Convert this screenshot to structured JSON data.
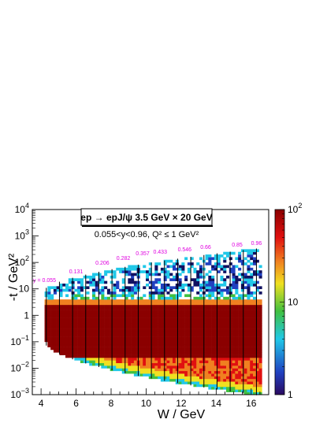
{
  "chart_data": {
    "type": "heatmap",
    "title": "ep → epJ/ψ 3.5 GeV × 20 GeV",
    "subtitle": "0.055<y<0.96, Q² ≤ 1 GeV²",
    "xlabel": "W / GeV",
    "ylabel": "-t / GeV²",
    "xlim": [
      3.5,
      17
    ],
    "ylim": [
      0.001,
      10000
    ],
    "y_log": true,
    "z_log": true,
    "zlim": [
      1,
      100
    ],
    "x_ticks": [
      "4",
      "6",
      "8",
      "10",
      "12",
      "14",
      "16"
    ],
    "y_ticks": [
      {
        "base": "10",
        "exp": "−3"
      },
      {
        "base": "10",
        "exp": "−2"
      },
      {
        "base": "10",
        "exp": "−1"
      },
      {
        "base": "1",
        "exp": ""
      },
      {
        "base": "10",
        "exp": ""
      },
      {
        "base": "10",
        "exp": "2"
      },
      {
        "base": "10",
        "exp": "3"
      },
      {
        "base": "10",
        "exp": "4"
      }
    ],
    "colorbar_ticks": [
      {
        "base": "1",
        "exp": ""
      },
      {
        "base": "10",
        "exp": ""
      },
      {
        "base": "10",
        "exp": "2"
      }
    ],
    "colors": {
      "dark_red": "#8b0000",
      "red": "#e01010",
      "yellow": "#f0e020",
      "green": "#40c040",
      "cyan": "#20c8e8",
      "blue": "#2040c0",
      "navy": "#101060",
      "label_magenta": "#e000e0"
    },
    "y_bin_lines": [
      {
        "y": 0.055,
        "w": 4.2,
        "label": "y = 0.055"
      },
      {
        "y": 0.131,
        "w": 6.0,
        "label": "0.131"
      },
      {
        "y": 0.206,
        "w": 7.5,
        "label": "0.206"
      },
      {
        "y": 0.282,
        "w": 8.7,
        "label": "0.282"
      },
      {
        "y": 0.357,
        "w": 9.8,
        "label": "0.357"
      },
      {
        "y": 0.433,
        "w": 10.8,
        "label": "0.433"
      },
      {
        "y": 0.546,
        "w": 12.2,
        "label": "0.546"
      },
      {
        "y": 0.66,
        "w": 13.4,
        "label": "0.66"
      },
      {
        "y": 0.85,
        "w": 15.2,
        "label": "0.85"
      },
      {
        "y": 0.96,
        "w": 16.3,
        "label": "0.96"
      }
    ],
    "vertical_lines_w": [
      4.3,
      5.05,
      5.8,
      6.55,
      7.3,
      8.05,
      8.8,
      9.55,
      10.3,
      11.05,
      11.8,
      12.55,
      13.3,
      14.05,
      14.8,
      15.55,
      16.3
    ]
  }
}
